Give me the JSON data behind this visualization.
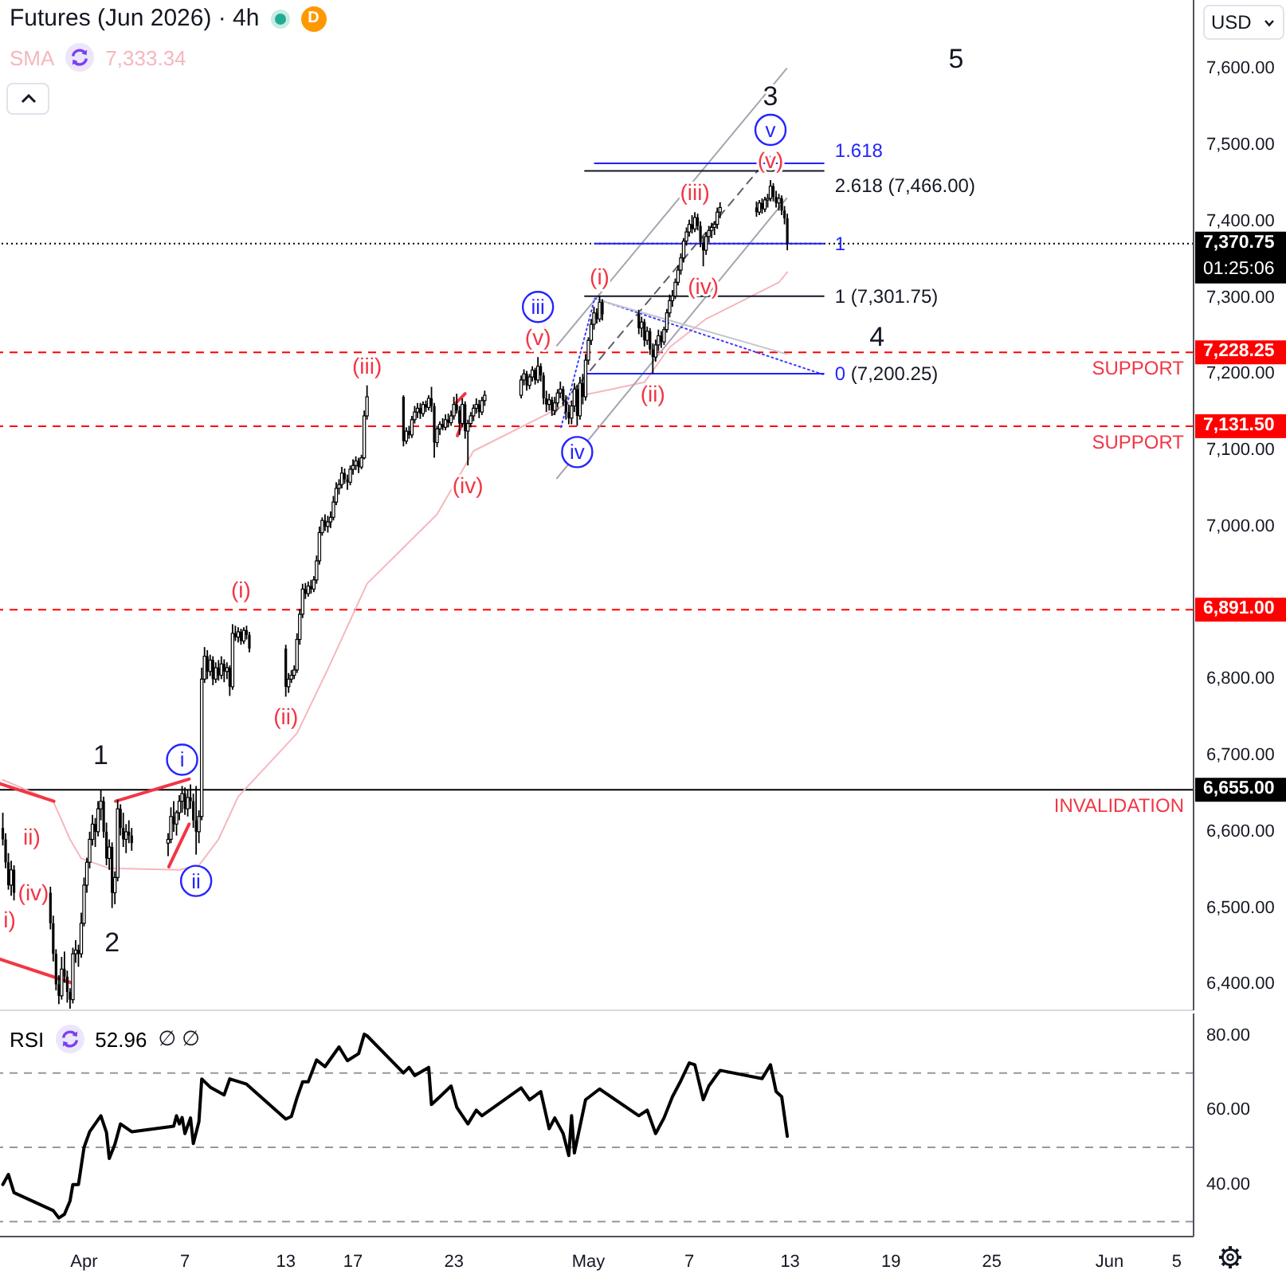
{
  "chart_data": [
    {
      "type": "candlestick",
      "title": "Futures (Jun 2026) · 4h",
      "ylabel": "USD",
      "color": "#000000",
      "x": [
        "2026-03-27T04:00",
        "2026-03-27T08:00",
        "2026-03-27T12:00",
        "2026-03-27T16:00",
        "2026-03-27T20:00",
        "2026-03-30T00:00",
        "2026-03-30T04:00",
        "2026-03-30T08:00",
        "2026-03-30T12:00",
        "2026-03-30T16:00",
        "2026-03-30T20:00",
        "2026-03-31T00:00",
        "2026-03-31T04:00",
        "2026-03-31T08:00",
        "2026-03-31T12:00",
        "2026-03-31T16:00",
        "2026-03-31T20:00",
        "2026-04-01T00:00",
        "2026-04-01T04:00",
        "2026-04-01T08:00",
        "2026-04-01T12:00",
        "2026-04-01T16:00",
        "2026-04-01T20:00",
        "2026-04-02T00:00",
        "2026-04-02T04:00",
        "2026-04-02T08:00",
        "2026-04-02T12:00",
        "2026-04-02T16:00",
        "2026-04-02T20:00",
        "2026-04-03T00:00",
        "2026-04-03T04:00",
        "2026-04-03T08:00",
        "2026-04-03T12:00",
        "2026-04-03T16:00",
        "2026-04-03T20:00",
        "2026-04-06T00:00",
        "2026-04-06T04:00",
        "2026-04-06T08:00",
        "2026-04-06T12:00",
        "2026-04-06T16:00",
        "2026-04-06T20:00",
        "2026-04-07T00:00",
        "2026-04-07T04:00",
        "2026-04-07T08:00",
        "2026-04-07T12:00",
        "2026-04-07T16:00",
        "2026-04-07T20:00",
        "2026-04-08T00:00",
        "2026-04-08T04:00",
        "2026-04-08T08:00",
        "2026-04-08T12:00",
        "2026-04-08T16:00",
        "2026-04-08T20:00",
        "2026-04-09T00:00",
        "2026-04-09T04:00",
        "2026-04-09T08:00",
        "2026-04-09T12:00",
        "2026-04-09T16:00",
        "2026-04-09T20:00",
        "2026-04-10T00:00",
        "2026-04-10T04:00",
        "2026-04-10T08:00",
        "2026-04-10T12:00",
        "2026-04-10T16:00",
        "2026-04-10T20:00",
        "2026-04-13T00:00",
        "2026-04-13T04:00",
        "2026-04-13T08:00",
        "2026-04-13T12:00",
        "2026-04-13T16:00",
        "2026-04-13T20:00",
        "2026-04-14T00:00",
        "2026-04-14T04:00",
        "2026-04-14T08:00",
        "2026-04-14T12:00",
        "2026-04-14T16:00",
        "2026-04-14T20:00",
        "2026-04-15T00:00",
        "2026-04-15T04:00",
        "2026-04-15T08:00",
        "2026-04-15T12:00",
        "2026-04-15T16:00",
        "2026-04-15T20:00",
        "2026-04-16T00:00",
        "2026-04-16T04:00",
        "2026-04-16T08:00",
        "2026-04-16T12:00",
        "2026-04-16T16:00",
        "2026-04-16T20:00",
        "2026-04-17T00:00",
        "2026-04-17T04:00",
        "2026-04-17T08:00",
        "2026-04-17T12:00",
        "2026-04-17T16:00",
        "2026-04-17T20:00",
        "2026-04-20T00:00",
        "2026-04-20T04:00",
        "2026-04-20T08:00",
        "2026-04-20T12:00",
        "2026-04-20T16:00",
        "2026-04-20T20:00",
        "2026-04-21T00:00",
        "2026-04-21T04:00",
        "2026-04-21T08:00",
        "2026-04-21T12:00",
        "2026-04-21T16:00",
        "2026-04-21T20:00",
        "2026-04-22T00:00",
        "2026-04-22T04:00",
        "2026-04-22T08:00",
        "2026-04-22T12:00",
        "2026-04-22T16:00",
        "2026-04-22T20:00",
        "2026-04-23T00:00",
        "2026-04-23T04:00",
        "2026-04-23T08:00",
        "2026-04-23T12:00",
        "2026-04-23T16:00",
        "2026-04-23T20:00",
        "2026-04-24T00:00",
        "2026-04-24T04:00",
        "2026-04-24T08:00",
        "2026-04-24T12:00",
        "2026-04-24T16:00",
        "2026-04-24T20:00",
        "2026-04-27T00:00",
        "2026-04-27T04:00",
        "2026-04-27T08:00",
        "2026-04-27T12:00",
        "2026-04-27T16:00",
        "2026-04-27T20:00",
        "2026-04-28T00:00",
        "2026-04-28T04:00",
        "2026-04-28T08:00",
        "2026-04-28T12:00",
        "2026-04-28T16:00",
        "2026-04-28T20:00",
        "2026-04-29T00:00",
        "2026-04-29T04:00",
        "2026-04-29T08:00",
        "2026-04-29T12:00",
        "2026-04-29T16:00",
        "2026-04-29T20:00",
        "2026-04-30T00:00",
        "2026-04-30T04:00",
        "2026-04-30T08:00",
        "2026-04-30T12:00",
        "2026-04-30T16:00",
        "2026-04-30T20:00",
        "2026-05-01T00:00",
        "2026-05-01T04:00",
        "2026-05-01T08:00",
        "2026-05-01T12:00",
        "2026-05-01T16:00",
        "2026-05-01T20:00",
        "2026-05-04T00:00",
        "2026-05-04T04:00",
        "2026-05-04T08:00",
        "2026-05-04T12:00",
        "2026-05-04T16:00",
        "2026-05-04T20:00",
        "2026-05-05T00:00",
        "2026-05-05T04:00",
        "2026-05-05T08:00",
        "2026-05-05T12:00",
        "2026-05-05T16:00",
        "2026-05-05T20:00",
        "2026-05-06T00:00",
        "2026-05-06T04:00",
        "2026-05-06T08:00",
        "2026-05-06T12:00",
        "2026-05-06T16:00",
        "2026-05-06T20:00",
        "2026-05-07T00:00",
        "2026-05-07T04:00",
        "2026-05-07T08:00",
        "2026-05-07T12:00",
        "2026-05-07T16:00",
        "2026-05-07T20:00",
        "2026-05-08T00:00",
        "2026-05-08T04:00",
        "2026-05-08T08:00",
        "2026-05-08T12:00",
        "2026-05-08T16:00",
        "2026-05-08T20:00",
        "2026-05-11T00:00",
        "2026-05-11T04:00",
        "2026-05-11T08:00",
        "2026-05-11T12:00",
        "2026-05-11T16:00",
        "2026-05-11T20:00",
        "2026-05-12T00:00",
        "2026-05-12T04:00",
        "2026-05-12T08:00",
        "2026-05-12T12:00",
        "2026-05-12T16:00",
        "2026-05-12T20:00"
      ],
      "ohlc": [
        [
          6605,
          6625,
          6582,
          6590
        ],
        [
          6590,
          6598,
          6552,
          6560
        ],
        [
          6560,
          6572,
          6524,
          6530
        ],
        [
          6530,
          6562,
          6516,
          6550
        ],
        [
          6550,
          6556,
          6510,
          6520
        ],
        [
          6520,
          6528,
          6472,
          6480
        ],
        [
          6480,
          6490,
          6430,
          6440
        ],
        [
          6440,
          6446,
          6392,
          6400
        ],
        [
          6400,
          6412,
          6374,
          6385
        ],
        [
          6385,
          6436,
          6380,
          6420
        ],
        [
          6420,
          6443,
          6402,
          6410
        ],
        [
          6410,
          6418,
          6376,
          6390
        ],
        [
          6390,
          6395,
          6368,
          6380
        ],
        [
          6380,
          6448,
          6375,
          6440
        ],
        [
          6440,
          6458,
          6428,
          6445
        ],
        [
          6445,
          6452,
          6423,
          6440
        ],
        [
          6440,
          6494,
          6435,
          6480
        ],
        [
          6480,
          6540,
          6476,
          6530
        ],
        [
          6530,
          6566,
          6520,
          6560
        ],
        [
          6560,
          6600,
          6552,
          6590
        ],
        [
          6590,
          6622,
          6582,
          6610
        ],
        [
          6610,
          6618,
          6580,
          6600
        ],
        [
          6600,
          6640,
          6594,
          6630
        ],
        [
          6630,
          6655,
          6615,
          6640
        ],
        [
          6640,
          6646,
          6592,
          6600
        ],
        [
          6600,
          6612,
          6556,
          6565
        ],
        [
          6565,
          6590,
          6550,
          6580
        ],
        [
          6580,
          6586,
          6500,
          6520
        ],
        [
          6520,
          6548,
          6505,
          6540
        ],
        [
          6540,
          6642,
          6535,
          6630
        ],
        [
          6630,
          6636,
          6595,
          6605
        ],
        [
          6605,
          6625,
          6580,
          6590
        ],
        [
          6590,
          6610,
          6572,
          6600
        ],
        [
          6600,
          6615,
          6585,
          6595
        ],
        [
          6595,
          6605,
          6575,
          6585
        ],
        [
          6585,
          6598,
          6568,
          6590
        ],
        [
          6590,
          6632,
          6585,
          6620
        ],
        [
          6620,
          6640,
          6600,
          6610
        ],
        [
          6610,
          6628,
          6595,
          6625
        ],
        [
          6625,
          6648,
          6615,
          6640
        ],
        [
          6640,
          6660,
          6625,
          6650
        ],
        [
          6650,
          6658,
          6622,
          6630
        ],
        [
          6630,
          6655,
          6620,
          6645
        ],
        [
          6645,
          6662,
          6630,
          6640
        ],
        [
          6640,
          6650,
          6605,
          6615
        ],
        [
          6615,
          6660,
          6570,
          6600
        ],
        [
          6600,
          6628,
          6585,
          6620
        ],
        [
          6620,
          6815,
          6615,
          6800
        ],
        [
          6800,
          6842,
          6795,
          6830
        ],
        [
          6830,
          6838,
          6800,
          6810
        ],
        [
          6810,
          6832,
          6804,
          6825
        ],
        [
          6825,
          6830,
          6792,
          6800
        ],
        [
          6800,
          6822,
          6795,
          6815
        ],
        [
          6815,
          6825,
          6798,
          6805
        ],
        [
          6805,
          6830,
          6800,
          6820
        ],
        [
          6820,
          6826,
          6796,
          6810
        ],
        [
          6810,
          6822,
          6800,
          6815
        ],
        [
          6815,
          6818,
          6778,
          6790
        ],
        [
          6790,
          6872,
          6786,
          6860
        ],
        [
          6860,
          6870,
          6850,
          6855
        ],
        [
          6855,
          6868,
          6848,
          6862
        ],
        [
          6862,
          6866,
          6845,
          6850
        ],
        [
          6850,
          6868,
          6846,
          6864
        ],
        [
          6864,
          6870,
          6852,
          6858
        ],
        [
          6858,
          6862,
          6835,
          6840
        ],
        [
          6840,
          6845,
          6777,
          6790
        ],
        [
          6790,
          6808,
          6782,
          6800
        ],
        [
          6800,
          6812,
          6795,
          6805
        ],
        [
          6805,
          6818,
          6800,
          6812
        ],
        [
          6812,
          6860,
          6808,
          6852
        ],
        [
          6852,
          6892,
          6845,
          6885
        ],
        [
          6885,
          6925,
          6880,
          6918
        ],
        [
          6918,
          6926,
          6905,
          6912
        ],
        [
          6912,
          6928,
          6908,
          6922
        ],
        [
          6922,
          6930,
          6912,
          6918
        ],
        [
          6918,
          6935,
          6914,
          6930
        ],
        [
          6930,
          6962,
          6925,
          6955
        ],
        [
          6955,
          7000,
          6950,
          6992
        ],
        [
          6992,
          7012,
          6988,
          7008
        ],
        [
          7008,
          7016,
          6994,
          7000
        ],
        [
          7000,
          7014,
          6992,
          7006
        ],
        [
          7006,
          7020,
          6998,
          7012
        ],
        [
          7012,
          7040,
          7008,
          7032
        ],
        [
          7032,
          7058,
          7028,
          7050
        ],
        [
          7050,
          7062,
          7042,
          7055
        ],
        [
          7055,
          7078,
          7050,
          7070
        ],
        [
          7070,
          7076,
          7056,
          7062
        ],
        [
          7062,
          7068,
          7048,
          7058
        ],
        [
          7058,
          7080,
          7054,
          7075
        ],
        [
          7075,
          7088,
          7068,
          7080
        ],
        [
          7080,
          7092,
          7074,
          7086
        ],
        [
          7086,
          7090,
          7070,
          7078
        ],
        [
          7078,
          7094,
          7075,
          7090
        ],
        [
          7090,
          7152,
          7088,
          7145
        ],
        [
          7145,
          7185,
          7140,
          7170
        ],
        [
          7170,
          7172,
          7105,
          7112
        ],
        [
          7112,
          7130,
          7108,
          7125
        ],
        [
          7125,
          7132,
          7115,
          7120
        ],
        [
          7120,
          7145,
          7116,
          7140
        ],
        [
          7140,
          7158,
          7135,
          7150
        ],
        [
          7150,
          7162,
          7142,
          7155
        ],
        [
          7155,
          7162,
          7141,
          7148
        ],
        [
          7148,
          7164,
          7144,
          7160
        ],
        [
          7160,
          7165,
          7150,
          7156
        ],
        [
          7156,
          7172,
          7152,
          7168
        ],
        [
          7168,
          7183,
          7150,
          7158
        ],
        [
          7158,
          7162,
          7090,
          7110
        ],
        [
          7110,
          7132,
          7104,
          7128
        ],
        [
          7128,
          7138,
          7120,
          7134
        ],
        [
          7134,
          7142,
          7126,
          7130
        ],
        [
          7130,
          7147,
          7126,
          7140
        ],
        [
          7140,
          7148,
          7130,
          7136
        ],
        [
          7136,
          7152,
          7132,
          7145
        ],
        [
          7145,
          7170,
          7140,
          7160
        ],
        [
          7160,
          7174,
          7148,
          7152
        ],
        [
          7152,
          7158,
          7120,
          7135
        ],
        [
          7135,
          7168,
          7130,
          7160
        ],
        [
          7160,
          7164,
          7115,
          7125
        ],
        [
          7125,
          7140,
          7080,
          7135
        ],
        [
          7135,
          7150,
          7130,
          7145
        ],
        [
          7145,
          7160,
          7138,
          7155
        ],
        [
          7155,
          7168,
          7148,
          7160
        ],
        [
          7160,
          7166,
          7142,
          7150
        ],
        [
          7150,
          7170,
          7146,
          7165
        ],
        [
          7165,
          7178,
          7158,
          7172
        ],
        [
          7172,
          7198,
          7168,
          7192
        ],
        [
          7192,
          7206,
          7185,
          7200
        ],
        [
          7200,
          7204,
          7178,
          7185
        ],
        [
          7185,
          7200,
          7180,
          7196
        ],
        [
          7196,
          7210,
          7190,
          7205
        ],
        [
          7205,
          7208,
          7186,
          7192
        ],
        [
          7192,
          7222,
          7188,
          7210
        ],
        [
          7210,
          7214,
          7190,
          7198
        ],
        [
          7198,
          7202,
          7160,
          7168
        ],
        [
          7168,
          7178,
          7150,
          7160
        ],
        [
          7160,
          7174,
          7152,
          7166
        ],
        [
          7166,
          7170,
          7145,
          7152
        ],
        [
          7152,
          7170,
          7146,
          7162
        ],
        [
          7162,
          7180,
          7156,
          7175
        ],
        [
          7175,
          7190,
          7168,
          7180
        ],
        [
          7180,
          7184,
          7158,
          7165
        ],
        [
          7165,
          7172,
          7140,
          7150
        ],
        [
          7150,
          7160,
          7134,
          7142
        ],
        [
          7142,
          7165,
          7134,
          7158
        ],
        [
          7158,
          7188,
          7150,
          7180
        ],
        [
          7180,
          7186,
          7132,
          7145
        ],
        [
          7145,
          7196,
          7140,
          7188
        ],
        [
          7188,
          7200,
          7160,
          7170
        ],
        [
          7170,
          7226,
          7165,
          7218
        ],
        [
          7218,
          7248,
          7212,
          7244
        ],
        [
          7244,
          7272,
          7238,
          7265
        ],
        [
          7265,
          7288,
          7258,
          7280
        ],
        [
          7280,
          7286,
          7266,
          7272
        ],
        [
          7272,
          7301.75,
          7268,
          7294
        ],
        [
          7294,
          7298,
          7270,
          7278
        ],
        [
          7278,
          7284,
          7252,
          7260
        ],
        [
          7260,
          7275,
          7248,
          7268
        ],
        [
          7268,
          7272,
          7236,
          7244
        ],
        [
          7244,
          7262,
          7238,
          7256
        ],
        [
          7256,
          7260,
          7225,
          7232
        ],
        [
          7232,
          7240,
          7200.25,
          7222
        ],
        [
          7222,
          7245,
          7216,
          7238
        ],
        [
          7238,
          7258,
          7230,
          7250
        ],
        [
          7250,
          7256,
          7234,
          7242
        ],
        [
          7242,
          7262,
          7238,
          7258
        ],
        [
          7258,
          7285,
          7254,
          7280
        ],
        [
          7280,
          7304,
          7274,
          7296
        ],
        [
          7296,
          7310,
          7288,
          7302
        ],
        [
          7302,
          7325,
          7298,
          7320
        ],
        [
          7320,
          7342,
          7316,
          7336
        ],
        [
          7336,
          7358,
          7330,
          7352
        ],
        [
          7352,
          7378,
          7346,
          7374
        ],
        [
          7374,
          7392,
          7368,
          7386
        ],
        [
          7386,
          7402,
          7380,
          7396
        ],
        [
          7396,
          7408,
          7384,
          7390
        ],
        [
          7390,
          7412,
          7386,
          7405
        ],
        [
          7405,
          7410,
          7388,
          7394
        ],
        [
          7394,
          7400,
          7366,
          7372
        ],
        [
          7372,
          7380,
          7341,
          7362
        ],
        [
          7362,
          7386,
          7356,
          7380
        ],
        [
          7380,
          7394,
          7372,
          7388
        ],
        [
          7388,
          7398,
          7378,
          7392
        ],
        [
          7392,
          7400,
          7382,
          7396
        ],
        [
          7396,
          7418,
          7390,
          7412
        ],
        [
          7412,
          7425,
          7404,
          7418
        ],
        [
          7418,
          7426,
          7406,
          7412
        ],
        [
          7412,
          7428,
          7408,
          7424
        ],
        [
          7424,
          7430,
          7410,
          7416
        ],
        [
          7416,
          7432,
          7412,
          7428
        ],
        [
          7428,
          7436,
          7418,
          7430
        ],
        [
          7430,
          7454,
          7426,
          7446
        ],
        [
          7446,
          7450,
          7426,
          7432
        ],
        [
          7432,
          7440,
          7418,
          7424
        ],
        [
          7424,
          7436,
          7414,
          7430
        ],
        [
          7430,
          7434,
          7408,
          7414
        ],
        [
          7414,
          7420,
          7396,
          7404
        ],
        [
          7404,
          7410,
          7362,
          7370.75
        ]
      ],
      "series": [
        {
          "type": "line",
          "name": "SMA",
          "color": "#f5b7bd",
          "x": [
            "2026-03-27T04:00",
            "2026-03-30T04:00",
            "2026-03-31T04:00",
            "2026-03-31T20:00",
            "2026-04-02T12:00",
            "2026-04-06T16:00",
            "2026-04-07T20:00",
            "2026-04-09T00:00",
            "2026-04-10T04:00",
            "2026-04-13T16:00",
            "2026-04-15T12:00",
            "2026-04-17T20:00",
            "2026-04-22T00:00",
            "2026-04-24T04:00",
            "2026-04-28T12:00",
            "2026-04-30T16:00",
            "2026-05-04T08:00",
            "2026-05-05T20:00",
            "2026-05-08T00:00",
            "2026-05-12T08:00",
            "2026-05-12T20:00"
          ],
          "values": [
            6668,
            6640,
            6590,
            6565,
            6552,
            6550,
            6556,
            6590,
            6646,
            6729,
            6813,
            6925,
            7016,
            7099,
            7147,
            7172,
            7189,
            7235,
            7272,
            7320,
            7333.34
          ]
        },
        {
          "type": "line",
          "color": "#a3a6af",
          "x": [
            "2026-04-29T03:00",
            "2026-05-12T19:00"
          ],
          "values": [
            7237,
            7600
          ]
        },
        {
          "type": "line",
          "color": "#a3a6af",
          "x": [
            "2026-04-29T03:00",
            "2026-05-12T19:00"
          ],
          "values": [
            7063,
            7430
          ]
        },
        {
          "type": "line",
          "color": "#5d606b",
          "line_style": "dashed",
          "x": [
            "2026-04-28T22:00",
            "2026-05-11T19:00"
          ],
          "values": [
            7147,
            7485
          ]
        },
        {
          "type": "line",
          "color": "#3d3dff",
          "line_style": "dotted",
          "x": [
            "2026-04-29T09:00",
            "2026-05-01T09:00"
          ],
          "values": [
            7130,
            7299
          ]
        },
        {
          "type": "line",
          "color": "#3d3dff",
          "line_style": "dotted",
          "x": [
            "2026-05-01T09:00",
            "2026-05-15T00:00"
          ],
          "values": [
            7299,
            7199
          ]
        },
        {
          "type": "line",
          "color": "#c3c5cc",
          "x": [
            "2026-05-01T14:00",
            "2026-05-12T19:00"
          ],
          "values": [
            7297,
            7226
          ]
        },
        {
          "type": "line",
          "color": "#131722",
          "x": [
            "2026-04-30T19:00",
            "2026-05-15T00:00"
          ],
          "values": [
            7466,
            7466
          ]
        },
        {
          "type": "line",
          "color": "#1f1fff",
          "x": [
            "2026-05-01T09:00",
            "2026-05-15T00:00"
          ],
          "values": [
            7476,
            7476
          ]
        },
        {
          "type": "line",
          "color": "#1f1fff",
          "x": [
            "2026-05-01T09:00",
            "2026-05-15T00:00"
          ],
          "values": [
            7370.75,
            7370.75
          ]
        },
        {
          "type": "line",
          "color": "#131722",
          "x": [
            "2026-04-30T19:00",
            "2026-05-15T00:00"
          ],
          "values": [
            7301.75,
            7301.75
          ]
        },
        {
          "type": "line",
          "color": "#1f1fff",
          "x": [
            "2026-04-30T19:00",
            "2026-05-15T00:00"
          ],
          "values": [
            7200.25,
            7200.25
          ]
        },
        {
          "type": "line",
          "color": "#f23645",
          "x": [
            "2026-03-27T00:00",
            "2026-03-30T05:00"
          ],
          "values": [
            6663,
            6640
          ]
        },
        {
          "type": "line",
          "color": "#f23645",
          "x": [
            "2026-03-27T00:00",
            "2026-03-31T06:00"
          ],
          "values": [
            6433,
            6402
          ]
        },
        {
          "type": "line",
          "color": "#f23645",
          "x": [
            "2026-04-02T21:00",
            "2026-04-07T06:00"
          ],
          "values": [
            6640,
            6669
          ]
        },
        {
          "type": "line",
          "color": "#f23645",
          "x": [
            "2026-04-06T01:00",
            "2026-04-07T06:00"
          ],
          "values": [
            6554,
            6610
          ]
        },
        {
          "type": "line",
          "color": "#f23645",
          "x": [
            "2026-04-23T02:00",
            "2026-04-23T16:00"
          ],
          "values": [
            7161,
            7174
          ]
        },
        {
          "type": "line",
          "color": "#f23645",
          "x": [
            "2026-04-23T05:00",
            "2026-04-23T14:00"
          ],
          "values": [
            7119,
            7140
          ]
        }
      ],
      "xlim": [
        "2026-03-27T00:00",
        "2026-06-06T00:00"
      ],
      "ylim": [
        6366,
        7690
      ],
      "yticks": [
        {
          "value": 6400,
          "label": "6,400.00"
        },
        {
          "value": 6500,
          "label": "6,500.00"
        },
        {
          "value": 6600,
          "label": "6,600.00"
        },
        {
          "value": 6655,
          "label": "6,655.00"
        },
        {
          "value": 6700,
          "label": "6,700.00"
        },
        {
          "value": 6800,
          "label": "6,800.00"
        },
        {
          "value": 6891,
          "label": "6,891.00"
        },
        {
          "value": 7000,
          "label": "7,000.00"
        },
        {
          "value": 7100,
          "label": "7,100.00"
        },
        {
          "value": 7131.5,
          "label": "7,131.50"
        },
        {
          "value": 7200,
          "label": "7,200.00"
        },
        {
          "value": 7228.25,
          "label": "7,228.25"
        },
        {
          "value": 7300,
          "label": "7,300.00"
        },
        {
          "value": 7370.75,
          "label": "7,370.75"
        },
        {
          "value": 7400,
          "label": "7,400.00"
        },
        {
          "value": 7500,
          "label": "7,500.00"
        },
        {
          "value": 7600,
          "label": "7,600.00"
        }
      ],
      "tick_labels": "y",
      "legend": "top left",
      "ref_lines": [
        {
          "axis": "y",
          "value": 7370.75,
          "color": "#000000",
          "line_style": "dotted"
        },
        {
          "axis": "y",
          "value": 7228.25,
          "label": "SUPPORT",
          "color": "#ff0000",
          "line_style": "dashed"
        },
        {
          "axis": "y",
          "value": 7131.5,
          "label": "SUPPORT",
          "color": "#ff0000",
          "line_style": "dashed"
        },
        {
          "axis": "y",
          "value": 6891,
          "color": "#ff0000",
          "line_style": "dashed"
        },
        {
          "axis": "y",
          "value": 6655,
          "label": "INVALIDATION",
          "color": "#000000",
          "line_style": "solid"
        }
      ],
      "annotations": [
        "D",
        "01:25:06",
        "7,333.34",
        "5",
        "ii)",
        "(iv)",
        "i)",
        {
          "text": "(i)",
          "x": "2026-04-10T08:00",
          "y": 6891
        },
        {
          "text": "(ii)",
          "x": "2026-04-13T00:00",
          "y": 6777
        },
        {
          "text": "(iii)",
          "x": "2026-04-17T20:00",
          "y": 7185
        },
        {
          "text": "(iv)",
          "x": "2026-04-23T20:00",
          "y": 7080
        },
        {
          "text": "(v)",
          "x": "2026-04-28T00:00",
          "y": 7222
        },
        {
          "text": "(i)",
          "x": "2026-05-01T16:00",
          "y": 7301.75
        },
        {
          "text": "(ii)",
          "x": "2026-05-04T20:00",
          "y": 7200.25
        },
        {
          "text": "(iii)",
          "x": "2026-05-07T08:00",
          "y": 7412
        },
        {
          "text": "(iv)",
          "x": "2026-05-07T20:00",
          "y": 7341
        },
        {
          "text": "(v)",
          "x": "2026-05-11T20:00",
          "y": 7454
        },
        {
          "text": "i",
          "x": "2026-04-06T20:00",
          "y": 6660
        },
        {
          "text": "ii",
          "x": "2026-04-07T16:00",
          "y": 6570
        },
        {
          "text": "iii",
          "x": "2026-04-28T00:00",
          "y": 7222
        },
        {
          "text": "iv",
          "x": "2026-04-30T08:00",
          "y": 7132
        },
        {
          "text": "v",
          "x": "2026-05-11T20:00",
          "y": 7454
        },
        {
          "text": "1",
          "x": "2026-04-02T00:00",
          "y": 6655
        },
        {
          "text": "2",
          "x": "2026-04-02T16:00",
          "y": 6500
        },
        {
          "text": "3",
          "x": "2026-05-11T20:00",
          "y": 7454
        },
        {
          "text": "4",
          "x": "2026-05-18T04:00",
          "y": 7228.25
        },
        {
          "text": "1.618",
          "x": "2026-05-15T00:00",
          "y": 7476
        },
        {
          "text": "2.618 (7,466.00)",
          "x": "2026-05-15T00:00",
          "y": 7466
        },
        {
          "text": "1",
          "x": "2026-05-15T00:00",
          "y": 7370.75
        },
        {
          "text": "1 (7,301.75)",
          "x": "2026-05-15T00:00",
          "y": 7301.75
        },
        {
          "text": "0 (7,200.25)",
          "x": "2026-05-15T00:00",
          "y": 7200.25
        }
      ]
    },
    {
      "type": "line",
      "x": [
        "2026-03-27T04:00",
        "2026-03-27T12:00",
        "2026-03-27T20:00",
        "2026-03-30T04:00",
        "2026-03-30T12:00",
        "2026-03-30T20:00",
        "2026-03-31T04:00",
        "2026-03-31T08:00",
        "2026-03-31T16:00",
        "2026-04-01T00:00",
        "2026-04-01T08:00",
        "2026-04-02T00:00",
        "2026-04-02T08:00",
        "2026-04-02T12:00",
        "2026-04-02T20:00",
        "2026-04-03T04:00",
        "2026-04-03T20:00",
        "2026-04-06T08:00",
        "2026-04-06T12:00",
        "2026-04-06T16:00",
        "2026-04-06T20:00",
        "2026-04-07T00:00",
        "2026-04-07T08:00",
        "2026-04-07T12:00",
        "2026-04-07T20:00",
        "2026-04-08T00:00",
        "2026-04-08T12:00",
        "2026-04-09T08:00",
        "2026-04-09T16:00",
        "2026-04-10T16:00",
        "2026-04-13T00:00",
        "2026-04-13T08:00",
        "2026-04-13T16:00",
        "2026-04-14T00:00",
        "2026-04-14T08:00",
        "2026-04-14T20:00",
        "2026-04-15T08:00",
        "2026-04-16T04:00",
        "2026-04-16T16:00",
        "2026-04-17T08:00",
        "2026-04-17T16:00",
        "2026-04-17T20:00",
        "2026-04-20T00:00",
        "2026-04-20T08:00",
        "2026-04-20T16:00",
        "2026-04-21T12:00",
        "2026-04-21T16:00",
        "2026-04-22T04:00",
        "2026-04-22T20:00",
        "2026-04-23T04:00",
        "2026-04-23T20:00",
        "2026-04-24T08:00",
        "2026-04-24T16:00",
        "2026-04-27T00:00",
        "2026-04-27T12:00",
        "2026-04-28T04:00",
        "2026-04-28T16:00",
        "2026-04-29T00:00",
        "2026-04-29T12:00",
        "2026-04-29T20:00",
        "2026-04-30T00:00",
        "2026-04-30T04:00",
        "2026-04-30T20:00",
        "2026-05-01T16:00",
        "2026-05-04T00:00",
        "2026-05-04T12:00",
        "2026-05-05T00:00",
        "2026-05-05T12:00",
        "2026-05-06T00:00",
        "2026-05-06T12:00",
        "2026-05-07T00:00",
        "2026-05-07T08:00",
        "2026-05-07T20:00",
        "2026-05-08T04:00",
        "2026-05-08T20:00",
        "2026-05-11T08:00",
        "2026-05-11T20:00",
        "2026-05-12T04:00",
        "2026-05-12T12:00",
        "2026-05-12T20:00"
      ],
      "series": [
        {
          "name": "RSI",
          "color": "#000000",
          "values": [
            40,
            42.7,
            37.8,
            33,
            31,
            32,
            35.6,
            40,
            40,
            50,
            54.2,
            58.5,
            54,
            47,
            50.8,
            56.3,
            54.2,
            55.7,
            58.5,
            56.3,
            58,
            53.7,
            57.9,
            51,
            56.9,
            68.4,
            66.2,
            64.1,
            68.4,
            67,
            57.6,
            58.3,
            63.3,
            67.6,
            67.6,
            73.5,
            71.7,
            77,
            73.3,
            75.2,
            80.4,
            80,
            70,
            71.5,
            69.3,
            71.5,
            61.5,
            63.6,
            66.5,
            60.8,
            56.3,
            60,
            58.5,
            66,
            62.8,
            65,
            55,
            57.9,
            53.7,
            47.8,
            58.5,
            48.5,
            62.8,
            65.7,
            58.5,
            60,
            53.7,
            57.9,
            63.6,
            67.9,
            72.7,
            72.2,
            62.8,
            66.5,
            70.7,
            68.5,
            72.2,
            65,
            63.6,
            52.96
          ]
        }
      ],
      "xlim": [
        "2026-03-27T00:00",
        "2026-06-06T00:00"
      ],
      "xticks": [
        {
          "value": "2026-04-01",
          "label": "Apr"
        },
        {
          "value": "2026-04-07",
          "label": "7"
        },
        {
          "value": "2026-04-13",
          "label": "13"
        },
        {
          "value": "2026-04-17",
          "label": "17"
        },
        {
          "value": "2026-04-23",
          "label": "23"
        },
        {
          "value": "2026-05-01",
          "label": "May"
        },
        {
          "value": "2026-05-07",
          "label": "7"
        },
        {
          "value": "2026-05-13",
          "label": "13"
        },
        {
          "value": "2026-05-19",
          "label": "19"
        },
        {
          "value": "2026-05-25",
          "label": "25"
        },
        {
          "value": "2026-06-01",
          "label": "Jun"
        },
        {
          "value": "2026-06-05",
          "label": "5"
        }
      ],
      "ylim": [
        26,
        86
      ],
      "yticks": [
        {
          "value": 40,
          "label": "40.00"
        },
        {
          "value": 60,
          "label": "60.00"
        },
        {
          "value": 80,
          "label": "80.00"
        }
      ],
      "legend": "top left",
      "ref_lines": [
        {
          "axis": "y",
          "value": 70,
          "color": "#9598a1",
          "line_style": "dashed"
        },
        {
          "axis": "y",
          "value": 50,
          "color": "#9598a1",
          "line_style": "dashed"
        },
        {
          "axis": "y",
          "value": 30,
          "color": "#9598a1",
          "line_style": "dashed"
        }
      ],
      "annotations": [
        "52.96",
        "∅ ∅"
      ]
    }
  ]
}
